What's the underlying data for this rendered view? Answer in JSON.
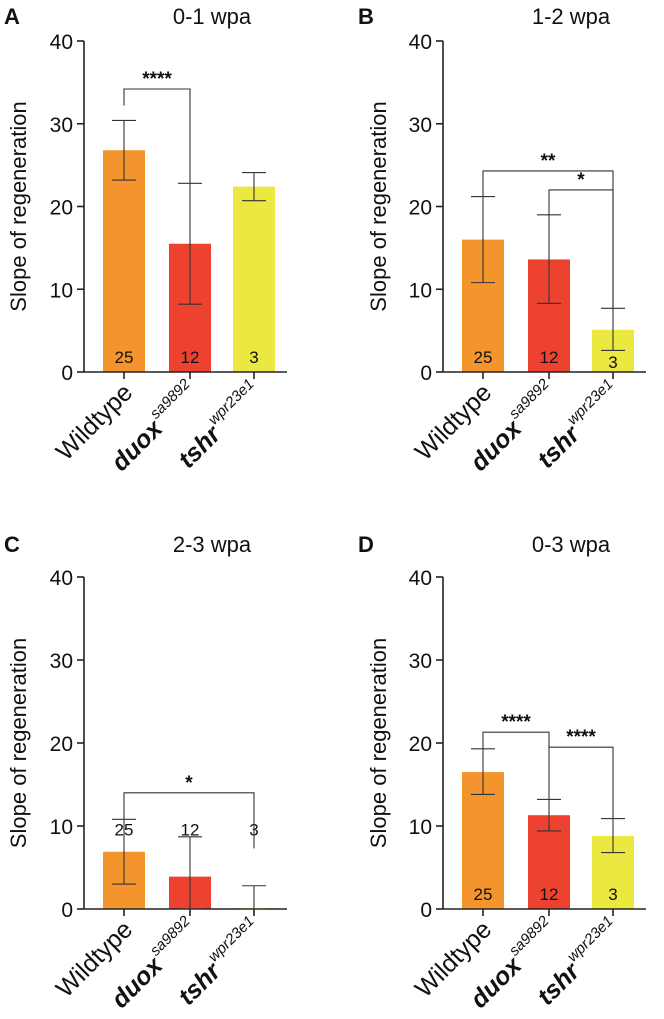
{
  "chart_data": [
    {
      "panel": "A",
      "type": "bar",
      "title": "0-1 wpa",
      "ylabel": "Slope of regeneration",
      "ylim": [
        0,
        40
      ],
      "yticks": [
        "0",
        "10",
        "20",
        "30",
        "40"
      ],
      "categories": [
        {
          "base": "Wildtype",
          "sup": "",
          "italic": false
        },
        {
          "base": "duox",
          "sup": "sa9892",
          "italic": true
        },
        {
          "base": "tshr",
          "sup": "wpr23e1",
          "italic": true
        }
      ],
      "values": [
        26.8,
        15.5,
        22.4
      ],
      "error_low": [
        23.2,
        8.2,
        20.7
      ],
      "error_high": [
        30.4,
        22.8,
        24.1
      ],
      "n_labels": [
        "25",
        "12",
        "3"
      ],
      "n_label_y": [
        1.8,
        1.8,
        1.8
      ],
      "colors": [
        "#f4942d",
        "#ee4230",
        "#ebe83f"
      ],
      "significance": [
        {
          "from": 0,
          "to": 1,
          "label": "****",
          "y": 34.2,
          "drop_left": 32.2,
          "drop_right": 22.8
        }
      ]
    },
    {
      "panel": "B",
      "type": "bar",
      "title": "1-2 wpa",
      "ylabel": "Slope of regeneration",
      "ylim": [
        0,
        40
      ],
      "yticks": [
        "0",
        "10",
        "20",
        "30",
        "40"
      ],
      "categories": [
        {
          "base": "Wildtype",
          "sup": "",
          "italic": false
        },
        {
          "base": "duox",
          "sup": "sa9892",
          "italic": true
        },
        {
          "base": "tshr",
          "sup": "wpr23e1",
          "italic": true
        }
      ],
      "values": [
        16.0,
        13.6,
        5.1
      ],
      "error_low": [
        10.8,
        8.3,
        2.6
      ],
      "error_high": [
        21.2,
        19.0,
        7.7
      ],
      "n_labels": [
        "25",
        "12",
        "3"
      ],
      "n_label_y": [
        1.8,
        1.8,
        1.2
      ],
      "colors": [
        "#f4942d",
        "#ee4230",
        "#ebe83f"
      ],
      "significance": [
        {
          "from": 0,
          "to": 2,
          "label": "**",
          "y": 24.3,
          "drop_left": 21.2,
          "drop_right": 7.7
        },
        {
          "from": 1,
          "to": 2,
          "label": "*",
          "y": 22.0,
          "drop_left": 19.0,
          "drop_right": 7.7
        }
      ]
    },
    {
      "panel": "C",
      "type": "bar",
      "title": "2-3 wpa",
      "ylabel": "Slope of regeneration",
      "ylim": [
        0,
        40
      ],
      "yticks": [
        "0",
        "10",
        "20",
        "30",
        "40"
      ],
      "categories": [
        {
          "base": "Wildtype",
          "sup": "",
          "italic": false
        },
        {
          "base": "duox",
          "sup": "sa9892",
          "italic": true
        },
        {
          "base": "tshr",
          "sup": "wpr23e1",
          "italic": true
        }
      ],
      "values": [
        6.9,
        3.9,
        0.1
      ],
      "error_low": [
        3.0,
        0.0,
        0.0
      ],
      "error_high": [
        10.8,
        8.7,
        2.8
      ],
      "n_labels": [
        "25",
        "12",
        "3"
      ],
      "n_label_y": [
        9.6,
        9.6,
        9.6
      ],
      "colors": [
        "#f4942d",
        "#ee4230",
        "#ebe83f"
      ],
      "significance": [
        {
          "from": 0,
          "to": 2,
          "label": "*",
          "y": 14.0,
          "drop_left": 10.8,
          "drop_right": 7.3
        }
      ]
    },
    {
      "panel": "D",
      "type": "bar",
      "title": "0-3 wpa",
      "ylabel": "Slope of regeneration",
      "ylim": [
        0,
        40
      ],
      "yticks": [
        "0",
        "10",
        "20",
        "30",
        "40"
      ],
      "categories": [
        {
          "base": "Wildtype",
          "sup": "",
          "italic": false
        },
        {
          "base": "duox",
          "sup": "sa9892",
          "italic": true
        },
        {
          "base": "tshr",
          "sup": "wpr23e1",
          "italic": true
        }
      ],
      "values": [
        16.5,
        11.3,
        8.8
      ],
      "error_low": [
        13.8,
        9.4,
        6.8
      ],
      "error_high": [
        19.3,
        13.2,
        10.9
      ],
      "n_labels": [
        "25",
        "12",
        "3"
      ],
      "n_label_y": [
        1.8,
        1.8,
        1.8
      ],
      "colors": [
        "#f4942d",
        "#ee4230",
        "#ebe83f"
      ],
      "significance": [
        {
          "from": 0,
          "to": 1,
          "label": "****",
          "y": 21.3,
          "drop_left": 19.3,
          "drop_right": 13.2
        },
        {
          "from": 1,
          "to": 2,
          "label": "****",
          "y": 19.5,
          "drop_left": 19.5,
          "drop_right": 10.9
        }
      ]
    }
  ]
}
